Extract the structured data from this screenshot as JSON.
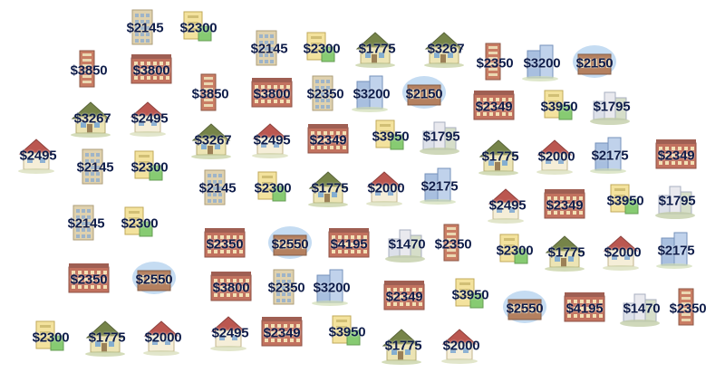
{
  "map": {
    "markers": [
      {
        "label": "$2145",
        "icon": "tower-building-icon"
      },
      {
        "label": "$2300",
        "icon": "green-office-icon"
      },
      {
        "label": "$2145",
        "icon": "tower-building-icon"
      },
      {
        "label": "$2300",
        "icon": "green-office-icon"
      },
      {
        "label": "$1775",
        "icon": "house-icon"
      },
      {
        "label": "$3267",
        "icon": "house-icon"
      },
      {
        "label": "$2350",
        "icon": "tall-tower-icon"
      },
      {
        "label": "$3200",
        "icon": "glass-tower-icon"
      },
      {
        "label": "$2150",
        "icon": "apartment-complex-icon"
      },
      {
        "label": "$3850",
        "icon": "tall-tower-icon"
      },
      {
        "label": "$3800",
        "icon": "brick-apartment-icon"
      },
      {
        "label": "$3850",
        "icon": "tall-tower-icon"
      },
      {
        "label": "$3800",
        "icon": "brick-apartment-icon"
      },
      {
        "label": "$2350",
        "icon": "tower-building-icon"
      },
      {
        "label": "$3200",
        "icon": "glass-tower-icon"
      },
      {
        "label": "$2150",
        "icon": "apartment-complex-icon"
      },
      {
        "label": "$2349",
        "icon": "brick-apartment-icon"
      },
      {
        "label": "$3950",
        "icon": "green-office-icon"
      },
      {
        "label": "$1795",
        "icon": "city-cluster-icon"
      },
      {
        "label": "$3267",
        "icon": "house-icon"
      },
      {
        "label": "$2495",
        "icon": "red-roof-house-icon"
      },
      {
        "label": "$3267",
        "icon": "house-icon"
      },
      {
        "label": "$2495",
        "icon": "red-roof-house-icon"
      },
      {
        "label": "$2349",
        "icon": "brick-apartment-icon"
      },
      {
        "label": "$3950",
        "icon": "green-office-icon"
      },
      {
        "label": "$1795",
        "icon": "city-cluster-icon"
      },
      {
        "label": "$2495",
        "icon": "red-roof-house-icon"
      },
      {
        "label": "$2145",
        "icon": "tower-building-icon"
      },
      {
        "label": "$2300",
        "icon": "green-office-icon"
      },
      {
        "label": "$1775",
        "icon": "house-icon"
      },
      {
        "label": "$2000",
        "icon": "red-roof-house-icon"
      },
      {
        "label": "$2175",
        "icon": "glass-tower-icon"
      },
      {
        "label": "$2349",
        "icon": "brick-apartment-icon"
      },
      {
        "label": "$2145",
        "icon": "tower-building-icon"
      },
      {
        "label": "$2300",
        "icon": "green-office-icon"
      },
      {
        "label": "$1775",
        "icon": "house-icon"
      },
      {
        "label": "$2000",
        "icon": "red-roof-house-icon"
      },
      {
        "label": "$2175",
        "icon": "glass-tower-icon"
      },
      {
        "label": "$2495",
        "icon": "red-roof-house-icon"
      },
      {
        "label": "$2349",
        "icon": "brick-apartment-icon"
      },
      {
        "label": "$3950",
        "icon": "green-office-icon"
      },
      {
        "label": "$1795",
        "icon": "city-cluster-icon"
      },
      {
        "label": "$2145",
        "icon": "tower-building-icon"
      },
      {
        "label": "$2300",
        "icon": "green-office-icon"
      },
      {
        "label": "$2350",
        "icon": "brick-apartment-icon"
      },
      {
        "label": "$2550",
        "icon": "apartment-complex-icon"
      },
      {
        "label": "$4195",
        "icon": "brick-apartment-icon"
      },
      {
        "label": "$1470",
        "icon": "city-cluster-icon"
      },
      {
        "label": "$2350",
        "icon": "tall-tower-icon"
      },
      {
        "label": "$2300",
        "icon": "green-office-icon"
      },
      {
        "label": "$1775",
        "icon": "house-icon"
      },
      {
        "label": "$2000",
        "icon": "red-roof-house-icon"
      },
      {
        "label": "$2175",
        "icon": "glass-tower-icon"
      },
      {
        "label": "$2350",
        "icon": "brick-apartment-icon"
      },
      {
        "label": "$2550",
        "icon": "apartment-complex-icon"
      },
      {
        "label": "$3800",
        "icon": "brick-apartment-icon"
      },
      {
        "label": "$2350",
        "icon": "tower-building-icon"
      },
      {
        "label": "$3200",
        "icon": "glass-tower-icon"
      },
      {
        "label": "$2349",
        "icon": "brick-apartment-icon"
      },
      {
        "label": "$3950",
        "icon": "green-office-icon"
      },
      {
        "label": "$2550",
        "icon": "apartment-complex-icon"
      },
      {
        "label": "$4195",
        "icon": "brick-apartment-icon"
      },
      {
        "label": "$1470",
        "icon": "city-cluster-icon"
      },
      {
        "label": "$2350",
        "icon": "tall-tower-icon"
      },
      {
        "label": "$2300",
        "icon": "green-office-icon"
      },
      {
        "label": "$1775",
        "icon": "house-icon"
      },
      {
        "label": "$2000",
        "icon": "red-roof-house-icon"
      },
      {
        "label": "$2495",
        "icon": "red-roof-house-icon"
      },
      {
        "label": "$2349",
        "icon": "brick-apartment-icon"
      },
      {
        "label": "$3950",
        "icon": "green-office-icon"
      },
      {
        "label": "$1775",
        "icon": "house-icon"
      },
      {
        "label": "$2000",
        "icon": "red-roof-house-icon"
      }
    ]
  }
}
